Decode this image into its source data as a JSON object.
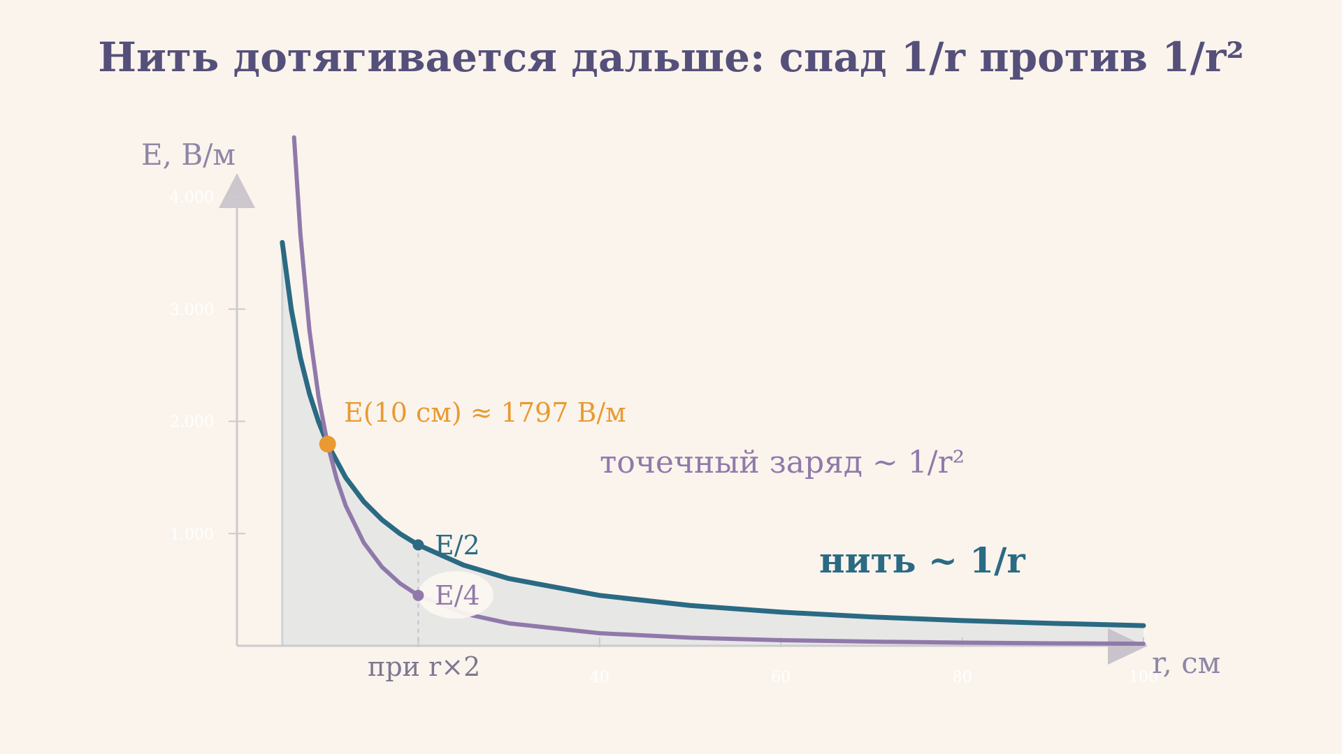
{
  "chart_data": {
    "type": "line",
    "title": "Нить дотягивается дальше: спад 1/r против 1/r²",
    "xlabel": "r, см",
    "ylabel": "E, В/м",
    "xlim": [
      0,
      100
    ],
    "ylim": [
      0,
      4000
    ],
    "x_ticks": [
      {
        "value": 20,
        "label": ""
      },
      {
        "value": 40,
        "label": "40"
      },
      {
        "value": 60,
        "label": "60"
      },
      {
        "value": 80,
        "label": "80"
      },
      {
        "value": 100,
        "label": "100"
      }
    ],
    "y_ticks": [
      {
        "value": 1000,
        "label": "1.000"
      },
      {
        "value": 2000,
        "label": "2.000"
      },
      {
        "value": 3000,
        "label": "3.000"
      },
      {
        "value": 4000,
        "label": "4.000"
      }
    ],
    "grid": false,
    "series": [
      {
        "color": "#2a6a83",
        "x": [
          5,
          6,
          7,
          8,
          9,
          10,
          12,
          14,
          16,
          18,
          20,
          25,
          30,
          40,
          50,
          60,
          70,
          80,
          90,
          100
        ],
        "y": [
          3594,
          2995,
          2567,
          2246,
          1997,
          1797,
          1498,
          1284,
          1123,
          998,
          899,
          719,
          599,
          449,
          359,
          300,
          257,
          225,
          200,
          180
        ]
      },
      {
        "color": "#9079aa",
        "x": [
          6.3,
          7,
          8,
          9,
          10,
          11,
          12,
          14,
          16,
          18,
          20,
          25,
          30,
          40,
          50,
          60,
          70,
          80,
          90,
          100
        ],
        "y": [
          4530,
          3667,
          2808,
          2219,
          1797,
          1485,
          1248,
          917,
          702,
          555,
          449,
          288,
          200,
          112,
          72,
          50,
          37,
          28,
          22,
          18
        ]
      }
    ],
    "markers": [
      {
        "x": 10,
        "y": 1797,
        "color": "#e99a33"
      },
      {
        "x": 20,
        "y": 899,
        "color": "#2a6a83"
      },
      {
        "x": 20,
        "y": 449,
        "color": "#9079aa"
      }
    ],
    "annotations": {
      "e10": "E(10 см)  ≈  1797 В/м",
      "point_charge": "точечный заряд ~ 1/r²",
      "thread": "нить ~ 1/r",
      "half": "E/2",
      "quarter": "E/4",
      "double_r": "при r×2"
    },
    "colors": {
      "background": "#faf4ed",
      "title": "#55507a",
      "axis": "#cdc9cd",
      "fill": "#e6e6e6",
      "highlight": "#e99a33"
    }
  }
}
